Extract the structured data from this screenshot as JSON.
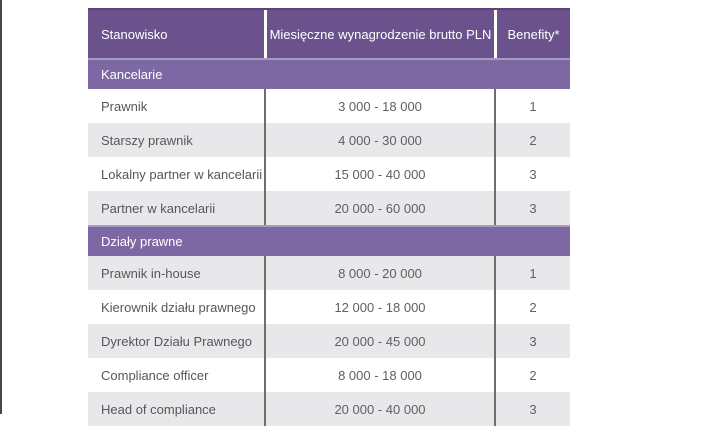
{
  "colors": {
    "header_bg": "#6C528C",
    "header_top_border": "#5B4378",
    "section_bg": "#7D68A4",
    "section_top_border": "#A79AC5",
    "row_bg": "#FFFFFF",
    "alt_row_bg": "#E8E8EA",
    "divider": "#6E6E6E",
    "header_text": "#FFFFFF",
    "body_text": "#57575A",
    "window_edge": "#474747"
  },
  "chart_data": {
    "type": "table",
    "columns": [
      "Stanowisko",
      "Miesięczne wynagrodzenie brutto PLN",
      "Benefity*"
    ],
    "sections": [
      {
        "title": "Kancelarie",
        "rows": [
          [
            "Prawnik",
            "3 000 - 18 000",
            "1"
          ],
          [
            "Starszy prawnik",
            "4 000 - 30 000",
            "2"
          ],
          [
            "Lokalny partner w kancelarii",
            "15 000 - 40 000",
            "3"
          ],
          [
            "Partner w kancelarii",
            "20 000 - 60 000",
            "3"
          ]
        ]
      },
      {
        "title": "Działy prawne",
        "rows": [
          [
            "Prawnik in-house",
            "8 000 - 20 000",
            "1"
          ],
          [
            "Kierownik działu prawnego",
            "12 000 - 18 000",
            "2"
          ],
          [
            "Dyrektor Działu Prawnego",
            "20 000 - 45 000",
            "3"
          ],
          [
            "Compliance officer",
            "8 000 - 18 000",
            "2"
          ],
          [
            "Head of compliance",
            "20 000 - 40 000",
            "3"
          ]
        ]
      }
    ]
  }
}
